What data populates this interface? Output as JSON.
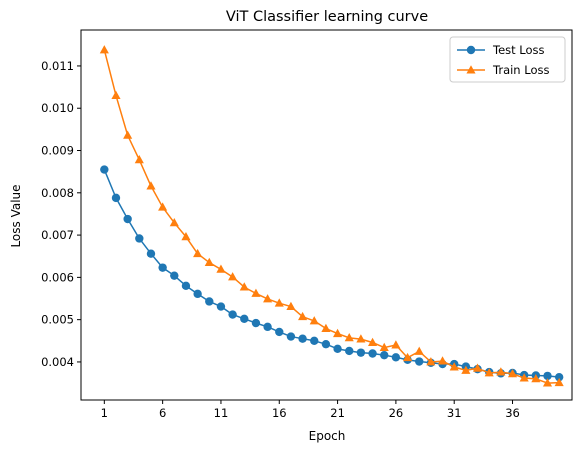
{
  "chart_data": {
    "type": "line",
    "title": "ViT Classifier learning curve",
    "xlabel": "Epoch",
    "ylabel": "Loss Value",
    "xlim": [
      -1,
      41.1
    ],
    "ylim": [
      0.0031,
      0.01185
    ],
    "xticks": [
      1,
      6,
      11,
      16,
      21,
      26,
      31,
      36
    ],
    "yticks": [
      0.004,
      0.005,
      0.006,
      0.007,
      0.008,
      0.009,
      0.01,
      0.011
    ],
    "ytick_labels": [
      "0.004",
      "0.005",
      "0.006",
      "0.007",
      "0.008",
      "0.009",
      "0.010",
      "0.011"
    ],
    "grid": false,
    "legend_position": "top-right",
    "x": [
      1,
      2,
      3,
      4,
      5,
      6,
      7,
      8,
      9,
      10,
      11,
      12,
      13,
      14,
      15,
      16,
      17,
      18,
      19,
      20,
      21,
      22,
      23,
      24,
      25,
      26,
      27,
      28,
      29,
      30,
      31,
      32,
      33,
      34,
      35,
      36,
      37,
      38,
      39,
      40
    ],
    "series": [
      {
        "name": "Test Loss",
        "color": "#1f77b4",
        "marker": "circle",
        "values": [
          0.00855,
          0.00788,
          0.00738,
          0.00692,
          0.00656,
          0.00623,
          0.00604,
          0.0058,
          0.00561,
          0.00543,
          0.00531,
          0.00512,
          0.00502,
          0.00492,
          0.00483,
          0.00471,
          0.0046,
          0.00455,
          0.0045,
          0.00442,
          0.00431,
          0.00426,
          0.00422,
          0.0042,
          0.00416,
          0.00411,
          0.00405,
          0.00401,
          0.00398,
          0.00395,
          0.00395,
          0.00389,
          0.00383,
          0.00376,
          0.00373,
          0.00374,
          0.00369,
          0.00368,
          0.00367,
          0.00364
        ]
      },
      {
        "name": "Train Loss",
        "color": "#ff7f0e",
        "marker": "triangle",
        "values": [
          0.01138,
          0.0103,
          0.00936,
          0.00878,
          0.00816,
          0.00766,
          0.00729,
          0.00696,
          0.00656,
          0.00635,
          0.00619,
          0.00601,
          0.00577,
          0.00562,
          0.00549,
          0.00539,
          0.00531,
          0.00507,
          0.00497,
          0.00479,
          0.00467,
          0.00457,
          0.00454,
          0.00446,
          0.00434,
          0.0044,
          0.0041,
          0.00425,
          0.004,
          0.00402,
          0.00388,
          0.0038,
          0.00385,
          0.00374,
          0.00376,
          0.00372,
          0.00362,
          0.0036,
          0.0035,
          0.00351
        ]
      }
    ]
  }
}
